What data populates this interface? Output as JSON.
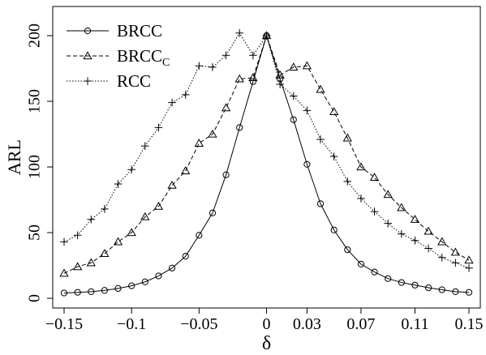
{
  "chart_data": {
    "type": "line",
    "xlabel": "δ",
    "ylabel": "ARL",
    "xlim": [
      -0.15,
      0.15
    ],
    "ylim": [
      0,
      210
    ],
    "x_ticks": [
      -0.15,
      -0.1,
      -0.05,
      0,
      0.03,
      0.07,
      0.11,
      0.15
    ],
    "x_tick_labels": [
      "−0.15",
      "−0.1",
      "−0.05",
      "0",
      "0.03",
      "0.07",
      "0.11",
      "0.15"
    ],
    "y_ticks": [
      0,
      50,
      100,
      150,
      200
    ],
    "y_tick_labels": [
      "0",
      "50",
      "100",
      "150",
      "200"
    ],
    "grid": false,
    "legend_position": "top-left",
    "x": [
      -0.15,
      -0.14,
      -0.13,
      -0.12,
      -0.11,
      -0.1,
      -0.09,
      -0.08,
      -0.07,
      -0.06,
      -0.05,
      -0.04,
      -0.03,
      -0.02,
      -0.01,
      0.0,
      0.01,
      0.02,
      0.03,
      0.04,
      0.05,
      0.06,
      0.07,
      0.08,
      0.09,
      0.1,
      0.11,
      0.12,
      0.13,
      0.14,
      0.15
    ],
    "series": [
      {
        "name": "BRCC",
        "legend_main": "BRCC",
        "legend_sub": "",
        "marker": "circle",
        "dash": "",
        "values": [
          4,
          4.5,
          5,
          6,
          7.5,
          9.5,
          12.5,
          17,
          23,
          32,
          48,
          65,
          94,
          130,
          165,
          200,
          167,
          136,
          102,
          72,
          52,
          37,
          26,
          20,
          15,
          12,
          10,
          8,
          6.5,
          5,
          4.5
        ]
      },
      {
        "name": "BRCC_C",
        "legend_main": "BRCC",
        "legend_sub": "C",
        "marker": "triangle",
        "dash": "5,3",
        "values": [
          19,
          24,
          27,
          34,
          43,
          50,
          62,
          70,
          86,
          97,
          118,
          125,
          145,
          167,
          168,
          200,
          170,
          176,
          177,
          159,
          142,
          122,
          100,
          92,
          79,
          69,
          60,
          51,
          43,
          35,
          29
        ]
      },
      {
        "name": "RCC",
        "legend_main": "RCC",
        "legend_sub": "",
        "marker": "plus",
        "dash": "1.5,2",
        "values": [
          43,
          48,
          60,
          68,
          87,
          98,
          116,
          130,
          149,
          155,
          177,
          176,
          185,
          202,
          185,
          200,
          163,
          154,
          143,
          121,
          108,
          89,
          76,
          66,
          57,
          49,
          44,
          38,
          31,
          27,
          23
        ]
      }
    ]
  }
}
